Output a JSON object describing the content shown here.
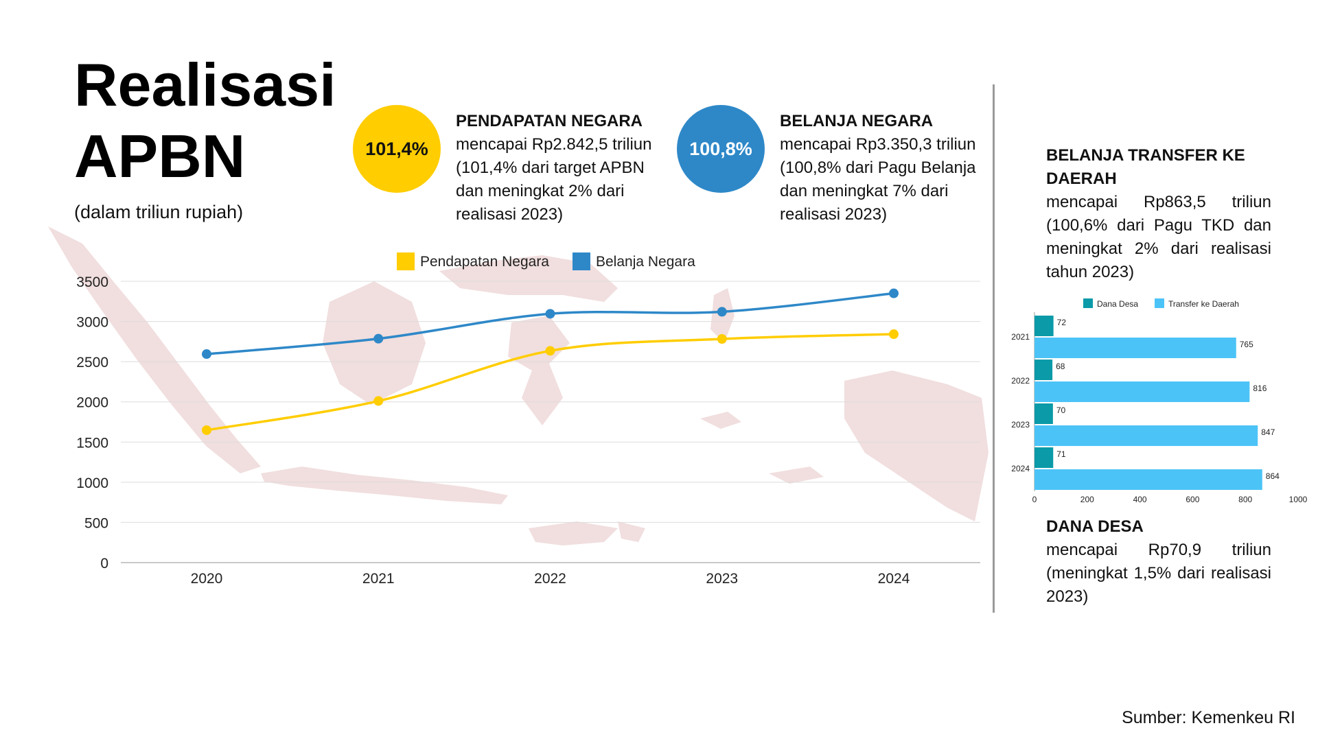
{
  "header": {
    "title_line1": "Realisasi",
    "title_line2": "APBN",
    "subtitle": "(dalam triliun rupiah)"
  },
  "stats": [
    {
      "badge": "101,4%",
      "heading": "PENDAPATAN NEGARA",
      "text": "mencapai Rp2.842,5 triliun (101,4% dari target APBN dan meningkat 2% dari realisasi 2023)",
      "color": "#ffcd00"
    },
    {
      "badge": "100,8%",
      "heading": "BELANJA NEGARA",
      "text": "mencapai Rp3.350,3 triliun (100,8% dari Pagu Belanja dan meningkat 7% dari realisasi 2023)",
      "color": "#2e88c8"
    }
  ],
  "right_panel": {
    "transfer": {
      "heading": "BELANJA TRANSFER KE DAERAH",
      "text": "mencapai Rp863,5 triliun (100,6% dari Pagu TKD dan meningkat 2% dari realisasi tahun 2023)"
    },
    "dana_desa": {
      "heading": "DANA DESA",
      "text": "mencapai Rp70,9 triliun (meningkat 1,5% dari realisasi 2023)"
    }
  },
  "source": "Sumber: Kemenkeu RI",
  "background_icon": "indonesia-map-icon",
  "chart_data": [
    {
      "type": "line",
      "x": [
        "2020",
        "2021",
        "2022",
        "2023",
        "2024"
      ],
      "ylim": [
        0,
        3500
      ],
      "yticks": [
        0,
        500,
        1000,
        1500,
        2000,
        2500,
        3000,
        3500
      ],
      "grid": true,
      "legend": "top-center",
      "series": [
        {
          "name": "Pendapatan Negara",
          "values": [
            1648,
            2011,
            2635,
            2783,
            2842.5
          ],
          "color": "#ffcd00"
        },
        {
          "name": "Belanja Negara",
          "values": [
            2595,
            2786,
            3096,
            3121,
            3350.3
          ],
          "color": "#2e88c8"
        }
      ]
    },
    {
      "type": "bar",
      "orientation": "horizontal",
      "categories": [
        "2021",
        "2022",
        "2023",
        "2024"
      ],
      "xlim": [
        0,
        1000
      ],
      "xticks": [
        0,
        200,
        400,
        600,
        800,
        1000
      ],
      "legend": "top",
      "series": [
        {
          "name": "Dana Desa",
          "values": [
            72,
            68,
            70,
            71
          ],
          "color": "#0b9aa8"
        },
        {
          "name": "Transfer ke Daerah",
          "values": [
            765,
            816,
            847,
            864
          ],
          "color": "#4cc3f7"
        }
      ]
    }
  ]
}
